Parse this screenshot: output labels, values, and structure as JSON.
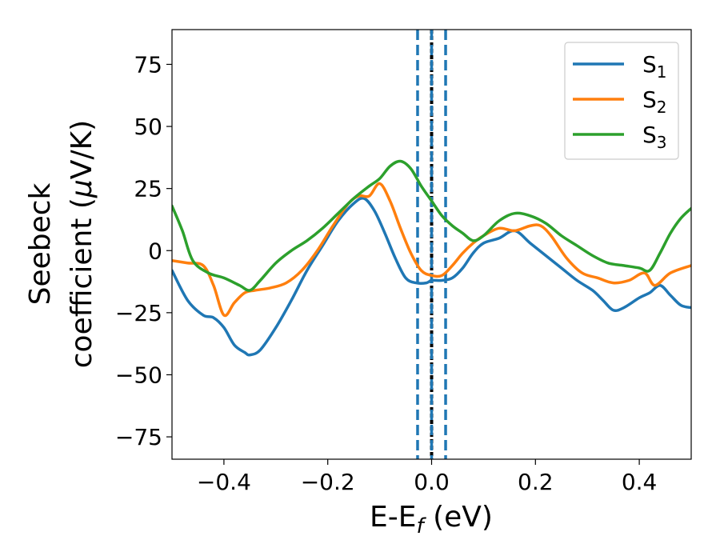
{
  "chart_data": {
    "type": "line",
    "xlabel": {
      "main": "E-E",
      "sub": "f",
      "suffix": " (eV)"
    },
    "ylabel": {
      "line1": "Seebeck",
      "line2_prefix": "coefficient  (",
      "mu": "μ",
      "line2_suffix": "V/K)"
    },
    "xlim": [
      -0.5,
      0.5
    ],
    "ylim": [
      -84,
      89
    ],
    "xticks": [
      {
        "value": -0.4,
        "label": "−0.4"
      },
      {
        "value": -0.2,
        "label": "−0.2"
      },
      {
        "value": 0.0,
        "label": "0.0"
      },
      {
        "value": 0.2,
        "label": "0.2"
      },
      {
        "value": 0.4,
        "label": "0.4"
      }
    ],
    "yticks": [
      {
        "value": 75,
        "label": "75"
      },
      {
        "value": 50,
        "label": "50"
      },
      {
        "value": 25,
        "label": "25"
      },
      {
        "value": 0,
        "label": "0"
      },
      {
        "value": -25,
        "label": "−25"
      },
      {
        "value": -50,
        "label": "−50"
      },
      {
        "value": -75,
        "label": "−75"
      }
    ],
    "vlines": [
      {
        "x": 0.0,
        "color": "#000000",
        "style": "dotted"
      },
      {
        "x": -0.027,
        "color": "#1f77b4",
        "style": "dashed"
      },
      {
        "x": 0.0,
        "color": "#1f77b4",
        "style": "dashed"
      },
      {
        "x": 0.027,
        "color": "#1f77b4",
        "style": "dashed"
      }
    ],
    "legend_position": "top-right",
    "series": [
      {
        "name": "S",
        "sub": "1",
        "color": "#1f77b4",
        "x": [
          -0.5,
          -0.47,
          -0.44,
          -0.42,
          -0.4,
          -0.38,
          -0.36,
          -0.35,
          -0.33,
          -0.3,
          -0.27,
          -0.24,
          -0.21,
          -0.18,
          -0.15,
          -0.13,
          -0.11,
          -0.09,
          -0.07,
          -0.05,
          -0.03,
          -0.01,
          0.0,
          0.02,
          0.04,
          0.06,
          0.08,
          0.1,
          0.13,
          0.16,
          0.19,
          0.22,
          0.25,
          0.28,
          0.31,
          0.33,
          0.35,
          0.37,
          0.4,
          0.42,
          0.44,
          0.46,
          0.48,
          0.5
        ],
        "y": [
          -8,
          -20,
          -26,
          -27,
          -31,
          -38,
          -41,
          -42,
          -40,
          -31,
          -20,
          -8,
          2,
          12,
          19,
          21,
          16,
          7,
          -3,
          -11,
          -13,
          -13,
          -12,
          -12,
          -11,
          -7,
          -1,
          3,
          5,
          8,
          3,
          -2,
          -7,
          -12,
          -16,
          -20,
          -24,
          -23,
          -19,
          -17,
          -14,
          -18,
          -22,
          -23
        ]
      },
      {
        "name": "S",
        "sub": "2",
        "color": "#ff7f0e",
        "x": [
          -0.5,
          -0.47,
          -0.44,
          -0.42,
          -0.4,
          -0.38,
          -0.36,
          -0.34,
          -0.31,
          -0.28,
          -0.25,
          -0.22,
          -0.19,
          -0.16,
          -0.14,
          -0.12,
          -0.1,
          -0.08,
          -0.06,
          -0.04,
          -0.02,
          0.0,
          0.02,
          0.04,
          0.06,
          0.08,
          0.1,
          0.13,
          0.16,
          0.19,
          0.21,
          0.23,
          0.26,
          0.29,
          0.32,
          0.35,
          0.38,
          0.41,
          0.43,
          0.46,
          0.5
        ],
        "y": [
          -4,
          -5,
          -6,
          -14,
          -26,
          -21,
          -17,
          -16,
          -15,
          -13,
          -8,
          0,
          10,
          19,
          22,
          22,
          27,
          20,
          9,
          -1,
          -8,
          -10,
          -10,
          -6,
          -1,
          3,
          6,
          9,
          8,
          10,
          10,
          6,
          -3,
          -9,
          -11,
          -13,
          -12,
          -9,
          -14,
          -9,
          -6
        ]
      },
      {
        "name": "S",
        "sub": "3",
        "color": "#2ca02c",
        "x": [
          -0.5,
          -0.48,
          -0.46,
          -0.43,
          -0.4,
          -0.37,
          -0.35,
          -0.33,
          -0.3,
          -0.27,
          -0.24,
          -0.21,
          -0.18,
          -0.15,
          -0.12,
          -0.1,
          -0.08,
          -0.06,
          -0.04,
          -0.02,
          0.0,
          0.02,
          0.04,
          0.06,
          0.08,
          0.1,
          0.13,
          0.16,
          0.19,
          0.22,
          0.25,
          0.28,
          0.31,
          0.34,
          0.37,
          0.4,
          0.42,
          0.44,
          0.46,
          0.48,
          0.5
        ],
        "y": [
          18,
          8,
          -4,
          -9,
          -11,
          -14,
          -16,
          -12,
          -5,
          0,
          4,
          9,
          15,
          21,
          26,
          29,
          34,
          36,
          33,
          26,
          20,
          14,
          10,
          7,
          4,
          6,
          12,
          15,
          14,
          11,
          6,
          2,
          -2,
          -5,
          -6,
          -7,
          -8,
          -1,
          7,
          13,
          17
        ]
      }
    ]
  }
}
